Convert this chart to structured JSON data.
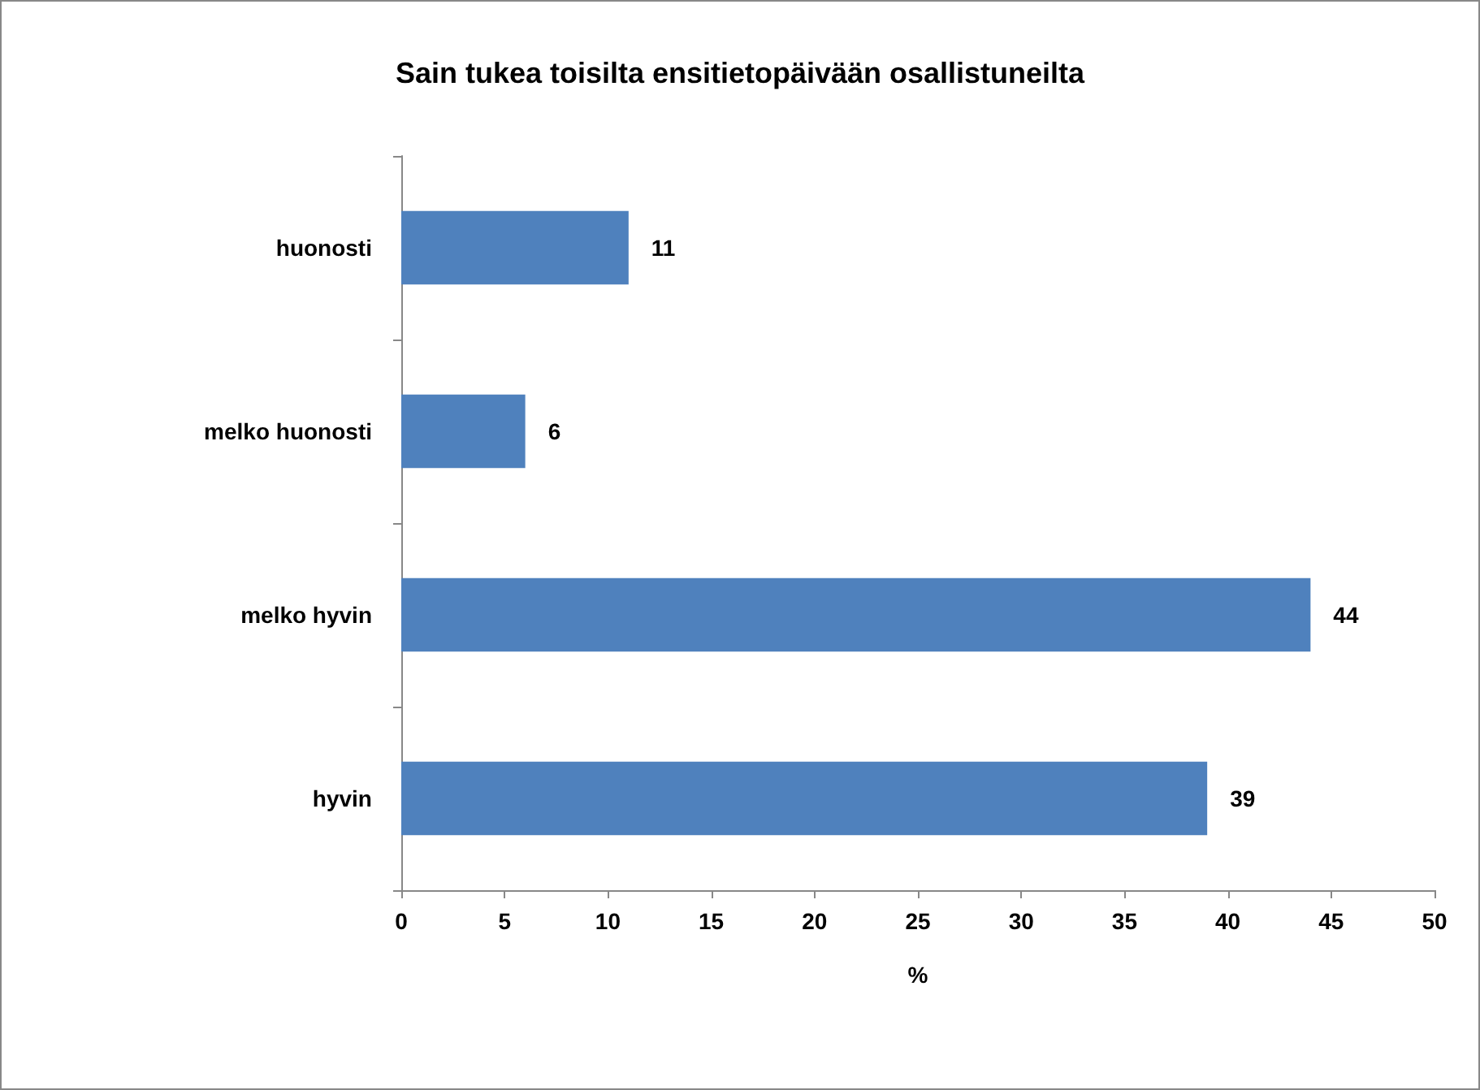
{
  "chart_data": {
    "type": "bar",
    "orientation": "horizontal",
    "title": "Sain tukea toisilta ensitietopäivään osallistuneilta",
    "xlabel": "%",
    "categories": [
      "huonosti",
      "melko huonosti",
      "melko hyvin",
      "hyvin"
    ],
    "values": [
      11,
      6,
      44,
      39
    ],
    "color": "#4f81bd",
    "xlim": [
      0,
      50
    ],
    "xticks": [
      0,
      5,
      10,
      15,
      20,
      25,
      30,
      35,
      40,
      45,
      50
    ],
    "grid": false,
    "data_labels": true
  }
}
